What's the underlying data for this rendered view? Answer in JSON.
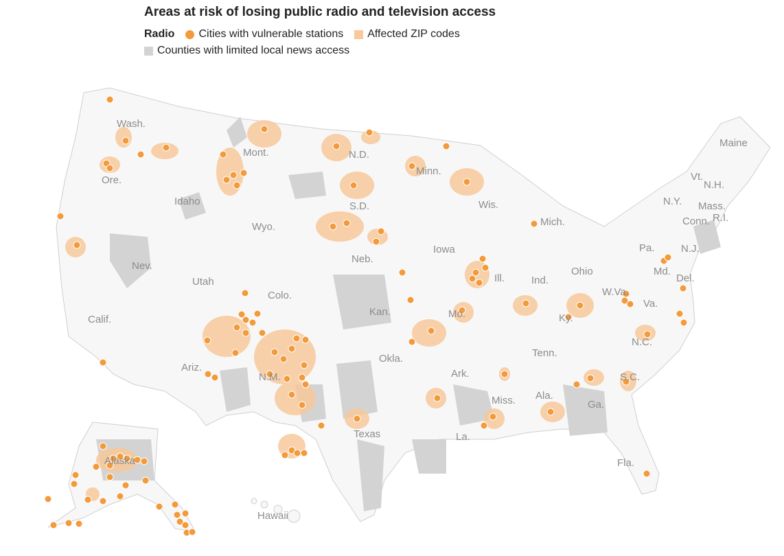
{
  "title": "Areas at risk of losing public radio and television access",
  "legend": {
    "group_label": "Radio",
    "items": [
      {
        "label": "Cities with vulnerable stations",
        "color": "#f39a3a"
      },
      {
        "label": "Affected ZIP codes",
        "color": "#f7c99b"
      },
      {
        "label": "Counties with limited local news access",
        "color": "#d3d3d3"
      }
    ]
  },
  "colors": {
    "land": "#f7f7f7",
    "border": "#cfcfcf",
    "label": "#8c8c8c"
  },
  "labels": [
    "Wash.",
    "Ore.",
    "Idaho",
    "Mont.",
    "N.D.",
    "S.D.",
    "Wyo.",
    "Minn.",
    "Wis.",
    "Mich.",
    "Maine",
    "Vt.",
    "N.H.",
    "N.Y.",
    "Mass.",
    "Conn.",
    "R.I.",
    "Pa.",
    "N.J.",
    "Md.",
    "Del.",
    "Iowa",
    "Neb.",
    "Nev.",
    "Calif.",
    "Utah",
    "Colo.",
    "Kan.",
    "Ill.",
    "Ind.",
    "Ohio",
    "W.Va.",
    "Va.",
    "Ky.",
    "Mo.",
    "Okla.",
    "N.C.",
    "Tenn.",
    "Ark.",
    "S.C.",
    "Ariz.",
    "N.M.",
    "Texas",
    "Miss.",
    "Ala.",
    "Ga.",
    "La.",
    "Fla.",
    "Alaska",
    "Hawaii"
  ]
}
